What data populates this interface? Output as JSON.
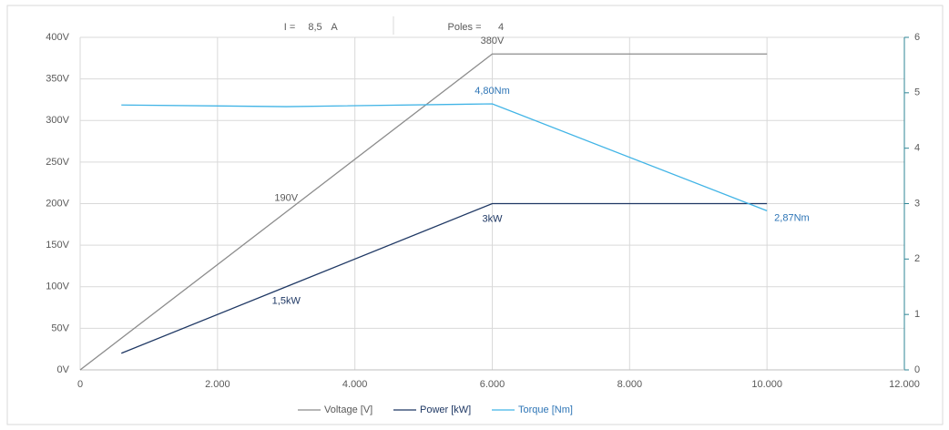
{
  "info": {
    "current_label": "I =",
    "current_value": "8,5",
    "current_unit": "A",
    "poles_label": "Poles =",
    "poles_value": "4"
  },
  "chart_data": {
    "type": "line",
    "xlim": [
      0,
      12000
    ],
    "xticks": [
      0,
      {
        "value": 2000,
        "label": "2.000"
      },
      {
        "value": 4000,
        "label": "4.000"
      },
      {
        "value": 6000,
        "label": "6.000"
      },
      {
        "value": 8000,
        "label": "8.000"
      },
      {
        "value": 10000,
        "label": "10.000"
      },
      {
        "value": 12000,
        "label": "12.000"
      }
    ],
    "ylim": [
      0,
      400
    ],
    "yticks": [
      {
        "value": 0,
        "label": "0V"
      },
      {
        "value": 50,
        "label": "50V"
      },
      {
        "value": 100,
        "label": "100V"
      },
      {
        "value": 150,
        "label": "150V"
      },
      {
        "value": 200,
        "label": "200V"
      },
      {
        "value": 250,
        "label": "250V"
      },
      {
        "value": 300,
        "label": "300V"
      },
      {
        "value": 350,
        "label": "350V"
      },
      {
        "value": 400,
        "label": "400V"
      }
    ],
    "y2lim": [
      0,
      6
    ],
    "y2ticks": [
      0,
      1,
      2,
      3,
      4,
      5,
      6
    ],
    "grid": true,
    "legend": "bottom",
    "series": [
      {
        "name": "Voltage [V]",
        "color": "#8c8c8c",
        "label_color": "#595959",
        "x": [
          0,
          3000,
          6000,
          10000
        ],
        "values": [
          0,
          190,
          380,
          380
        ],
        "value_labels": [
          null,
          "190V",
          "380V",
          null
        ]
      },
      {
        "name": "Power [kW]",
        "color": "#1f3864",
        "label_color": "#1f3864",
        "axis": "y2",
        "x": [
          600,
          3000,
          6000,
          10000
        ],
        "values": [
          0.3,
          1.5,
          3,
          3
        ],
        "value_labels": [
          null,
          "1,5kW",
          "3kW",
          null
        ]
      },
      {
        "name": "Torque [Nm]",
        "color": "#41b4e6",
        "label_color": "#2e75b6",
        "axis": "y2",
        "x": [
          600,
          3000,
          6000,
          10000
        ],
        "values": [
          4.78,
          4.75,
          4.8,
          2.87
        ],
        "value_labels": [
          null,
          null,
          "4,80Nm",
          "2,87Nm"
        ]
      }
    ]
  }
}
